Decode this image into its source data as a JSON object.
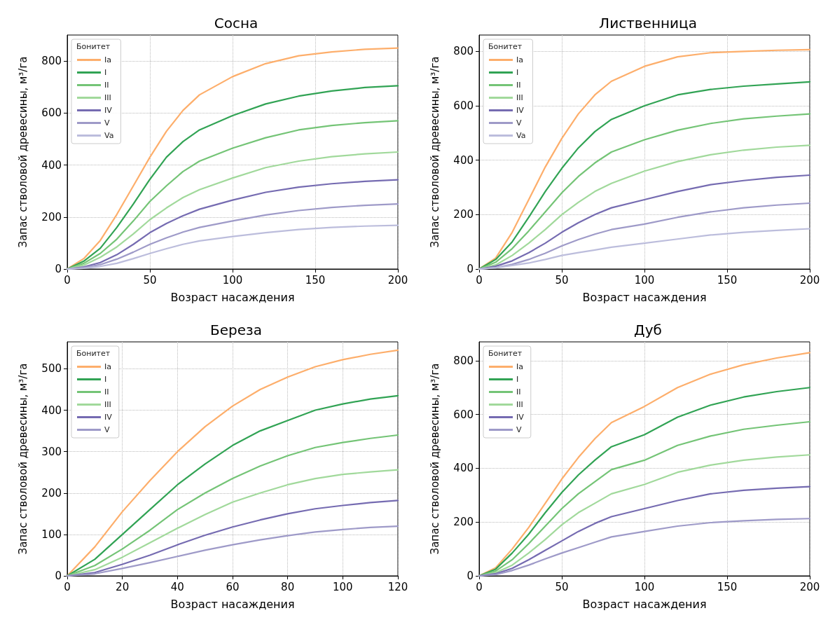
{
  "chart_data": [
    {
      "type": "line",
      "title": "Сосна",
      "xlabel": "Возраст насаждения",
      "ylabel": "Запас стволовой древесины, м³/га",
      "legend_title": "Бонитет",
      "legend": "top left",
      "grid": true,
      "xlim": [
        0,
        200
      ],
      "xticks": [
        0,
        50,
        100,
        150,
        200
      ],
      "ylim": [
        0,
        900
      ],
      "yticks": [
        0,
        200,
        400,
        600,
        800
      ],
      "x": [
        0,
        10,
        20,
        30,
        40,
        50,
        60,
        70,
        80,
        100,
        120,
        140,
        160,
        180,
        200
      ],
      "series": [
        {
          "name": "Ia",
          "color": "#fdae6b",
          "values": [
            0,
            40,
            110,
            210,
            320,
            430,
            530,
            610,
            670,
            740,
            790,
            820,
            835,
            845,
            850
          ]
        },
        {
          "name": "I",
          "color": "#31a354",
          "values": [
            0,
            30,
            80,
            160,
            250,
            345,
            430,
            490,
            535,
            590,
            635,
            665,
            685,
            698,
            705
          ]
        },
        {
          "name": "II",
          "color": "#74c476",
          "values": [
            0,
            22,
            60,
            115,
            185,
            260,
            320,
            375,
            415,
            465,
            505,
            535,
            552,
            563,
            570
          ]
        },
        {
          "name": "III",
          "color": "#a1d99b",
          "values": [
            0,
            15,
            45,
            85,
            135,
            190,
            235,
            275,
            305,
            350,
            390,
            415,
            432,
            443,
            450
          ]
        },
        {
          "name": "IV",
          "color": "#756bb1",
          "values": [
            0,
            8,
            25,
            55,
            95,
            140,
            175,
            205,
            230,
            265,
            295,
            315,
            328,
            337,
            343
          ]
        },
        {
          "name": "V",
          "color": "#9e9ac8",
          "values": [
            0,
            5,
            17,
            38,
            65,
            95,
            120,
            142,
            160,
            185,
            208,
            225,
            237,
            245,
            250
          ]
        },
        {
          "name": "Va",
          "color": "#bcbddc",
          "values": [
            0,
            3,
            10,
            22,
            40,
            60,
            78,
            95,
            108,
            125,
            140,
            152,
            160,
            165,
            168
          ]
        }
      ]
    },
    {
      "type": "line",
      "title": "Лиственница",
      "xlabel": "Возраст насаждения",
      "ylabel": "Запас стволовой древесины, м³/га",
      "legend_title": "Бонитет",
      "legend": "top left",
      "grid": true,
      "xlim": [
        0,
        200
      ],
      "xticks": [
        0,
        50,
        100,
        150,
        200
      ],
      "ylim": [
        0,
        860
      ],
      "yticks": [
        0,
        200,
        400,
        600,
        800
      ],
      "x": [
        0,
        10,
        20,
        30,
        40,
        50,
        60,
        70,
        80,
        100,
        120,
        140,
        160,
        180,
        200
      ],
      "series": [
        {
          "name": "Ia",
          "color": "#fdae6b",
          "values": [
            0,
            40,
            135,
            255,
            375,
            480,
            570,
            640,
            690,
            745,
            780,
            795,
            800,
            804,
            806
          ]
        },
        {
          "name": "I",
          "color": "#31a354",
          "values": [
            0,
            35,
            100,
            190,
            285,
            370,
            445,
            505,
            550,
            600,
            640,
            660,
            672,
            680,
            688
          ]
        },
        {
          "name": "II",
          "color": "#74c476",
          "values": [
            0,
            25,
            75,
            140,
            210,
            280,
            340,
            390,
            430,
            475,
            510,
            535,
            552,
            562,
            570
          ]
        },
        {
          "name": "III",
          "color": "#a1d99b",
          "values": [
            0,
            15,
            50,
            95,
            145,
            200,
            245,
            285,
            315,
            360,
            395,
            420,
            437,
            448,
            455
          ]
        },
        {
          "name": "IV",
          "color": "#756bb1",
          "values": [
            0,
            10,
            30,
            60,
            95,
            135,
            170,
            200,
            225,
            255,
            285,
            310,
            325,
            337,
            345
          ]
        },
        {
          "name": "V",
          "color": "#9e9ac8",
          "values": [
            0,
            5,
            17,
            35,
            58,
            85,
            108,
            128,
            145,
            165,
            190,
            210,
            225,
            235,
            242
          ]
        },
        {
          "name": "Va",
          "color": "#bcbddc",
          "values": [
            0,
            5,
            13,
            22,
            35,
            50,
            60,
            70,
            80,
            95,
            110,
            125,
            135,
            142,
            148
          ]
        }
      ]
    },
    {
      "type": "line",
      "title": "Береза",
      "xlabel": "Возраст насаждения",
      "ylabel": "Запас стволовой древесины, м³/га",
      "legend_title": "Бонитет",
      "legend": "top left",
      "grid": true,
      "xlim": [
        0,
        120
      ],
      "xticks": [
        0,
        20,
        40,
        60,
        80,
        100,
        120
      ],
      "ylim": [
        0,
        565
      ],
      "yticks": [
        0,
        100,
        200,
        300,
        400,
        500
      ],
      "x": [
        0,
        10,
        20,
        30,
        40,
        50,
        60,
        70,
        80,
        90,
        100,
        110,
        120
      ],
      "series": [
        {
          "name": "Ia",
          "color": "#fdae6b",
          "values": [
            0,
            70,
            155,
            230,
            300,
            360,
            410,
            450,
            480,
            505,
            522,
            535,
            545
          ]
        },
        {
          "name": "I",
          "color": "#31a354",
          "values": [
            0,
            40,
            100,
            160,
            220,
            270,
            315,
            350,
            375,
            400,
            415,
            427,
            435
          ]
        },
        {
          "name": "II",
          "color": "#74c476",
          "values": [
            0,
            25,
            65,
            110,
            160,
            200,
            235,
            265,
            290,
            310,
            322,
            332,
            340
          ]
        },
        {
          "name": "III",
          "color": "#a1d99b",
          "values": [
            0,
            15,
            45,
            80,
            115,
            148,
            178,
            200,
            220,
            235,
            245,
            251,
            256
          ]
        },
        {
          "name": "IV",
          "color": "#756bb1",
          "values": [
            0,
            8,
            28,
            50,
            75,
            98,
            118,
            135,
            150,
            162,
            170,
            177,
            182
          ]
        },
        {
          "name": "V",
          "color": "#9e9ac8",
          "values": [
            0,
            5,
            18,
            32,
            47,
            62,
            75,
            87,
            97,
            106,
            112,
            117,
            120
          ]
        }
      ]
    },
    {
      "type": "line",
      "title": "Дуб",
      "xlabel": "Возраст насаждения",
      "ylabel": "Запас стволовой древесины, м³/га",
      "legend_title": "Бонитет",
      "legend": "top left",
      "grid": true,
      "xlim": [
        0,
        200
      ],
      "xticks": [
        0,
        50,
        100,
        150,
        200
      ],
      "ylim": [
        0,
        870
      ],
      "yticks": [
        0,
        200,
        400,
        600,
        800
      ],
      "x": [
        0,
        10,
        20,
        30,
        40,
        50,
        60,
        70,
        80,
        100,
        120,
        140,
        160,
        180,
        200
      ],
      "series": [
        {
          "name": "Ia",
          "color": "#fdae6b",
          "values": [
            0,
            30,
            100,
            180,
            270,
            360,
            440,
            510,
            570,
            630,
            700,
            750,
            785,
            810,
            830
          ]
        },
        {
          "name": "I",
          "color": "#31a354",
          "values": [
            0,
            25,
            85,
            155,
            235,
            310,
            375,
            430,
            480,
            525,
            590,
            635,
            665,
            685,
            700
          ]
        },
        {
          "name": "II",
          "color": "#74c476",
          "values": [
            0,
            18,
            60,
            120,
            185,
            250,
            305,
            350,
            395,
            430,
            485,
            520,
            545,
            560,
            573
          ]
        },
        {
          "name": "III",
          "color": "#a1d99b",
          "values": [
            0,
            12,
            40,
            85,
            135,
            190,
            235,
            270,
            305,
            340,
            385,
            412,
            430,
            442,
            450
          ]
        },
        {
          "name": "IV",
          "color": "#756bb1",
          "values": [
            0,
            8,
            28,
            60,
            95,
            130,
            165,
            195,
            220,
            250,
            280,
            305,
            318,
            326,
            332
          ]
        },
        {
          "name": "V",
          "color": "#9e9ac8",
          "values": [
            0,
            5,
            20,
            40,
            63,
            85,
            105,
            125,
            145,
            165,
            185,
            198,
            205,
            210,
            213
          ]
        }
      ]
    }
  ]
}
